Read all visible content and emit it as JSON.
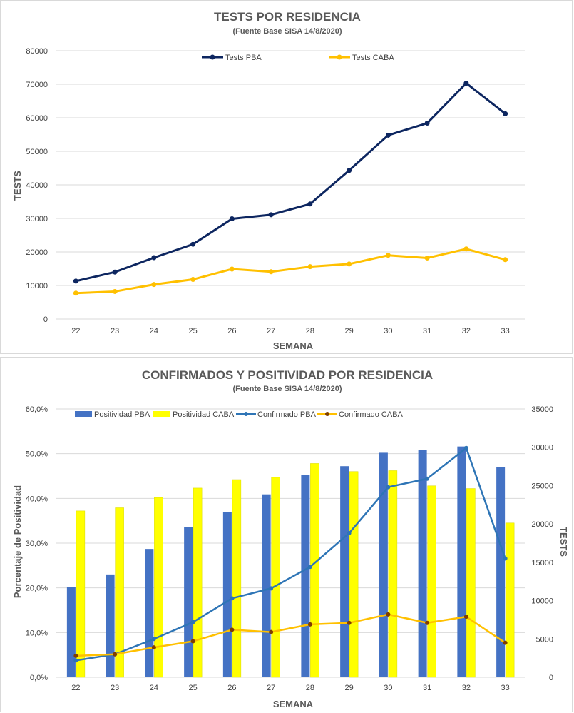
{
  "colors": {
    "pba_line_top": "#0d2660",
    "caba_line": "#ffc000",
    "pba_bar": "#4472c4",
    "caba_bar": "#ffff00",
    "pba_conf_line": "#2e75b6",
    "caba_conf_marker": "#7f3f00",
    "grid": "#d9d9d9"
  },
  "chart_data": [
    {
      "type": "line",
      "title": "TESTS POR RESIDENCIA",
      "subtitle": "(Fuente Base SISA 14/8/2020)",
      "xlabel": "SEMANA",
      "ylabel": "TESTS",
      "categories": [
        "22",
        "23",
        "24",
        "25",
        "26",
        "27",
        "28",
        "29",
        "30",
        "31",
        "32",
        "33"
      ],
      "ylim": [
        0,
        80000
      ],
      "yticks": [
        "0",
        "10000",
        "20000",
        "30000",
        "40000",
        "50000",
        "60000",
        "70000",
        "80000"
      ],
      "legend_position": "top",
      "grid": true,
      "series": [
        {
          "name": "Tests PBA",
          "values": [
            11300,
            14000,
            18300,
            22300,
            29900,
            31100,
            34300,
            44300,
            54800,
            58400,
            70300,
            61200
          ]
        },
        {
          "name": "Tests CABA",
          "values": [
            7700,
            8200,
            10300,
            11800,
            14900,
            14100,
            15600,
            16400,
            19000,
            18200,
            20900,
            17700
          ]
        }
      ]
    },
    {
      "type": "bar",
      "title": "CONFIRMADOS Y POSITIVIDAD POR RESIDENCIA",
      "subtitle": "(Fuente Base SISA 14/8/2020)",
      "xlabel": "SEMANA",
      "ylabel": "Porcentaje de Positividad",
      "y2label": "TESTS",
      "categories": [
        "22",
        "23",
        "24",
        "25",
        "26",
        "27",
        "28",
        "29",
        "30",
        "31",
        "32",
        "33"
      ],
      "ylim": [
        0,
        60
      ],
      "yticks": [
        "0,0%",
        "10,0%",
        "20,0%",
        "30,0%",
        "40,0%",
        "50,0%",
        "60,0%"
      ],
      "y2lim": [
        0,
        35000
      ],
      "y2ticks": [
        "0",
        "5000",
        "10000",
        "15000",
        "20000",
        "25000",
        "30000",
        "35000"
      ],
      "legend_position": "top",
      "grid": true,
      "series": [
        {
          "name": "Positividad PBA",
          "kind": "bar",
          "axis": "left",
          "values": [
            20.2,
            23.0,
            28.7,
            33.6,
            37.0,
            40.9,
            45.3,
            47.2,
            50.2,
            50.8,
            51.6,
            47.0
          ]
        },
        {
          "name": "Positividad CABA",
          "kind": "bar",
          "axis": "left",
          "values": [
            37.2,
            37.9,
            40.2,
            42.3,
            44.2,
            44.7,
            47.8,
            46.0,
            46.2,
            42.8,
            42.2,
            34.5
          ]
        },
        {
          "name": "Confirmado PBA",
          "kind": "line",
          "axis": "right",
          "values": [
            2200,
            3000,
            5000,
            7200,
            10300,
            11600,
            14400,
            18800,
            24800,
            25900,
            29900,
            15500
          ]
        },
        {
          "name": "Confirmado CABA",
          "kind": "line",
          "axis": "right",
          "values": [
            2800,
            3000,
            3900,
            4700,
            6200,
            5900,
            6900,
            7100,
            8200,
            7100,
            7900,
            4500
          ]
        }
      ]
    }
  ]
}
